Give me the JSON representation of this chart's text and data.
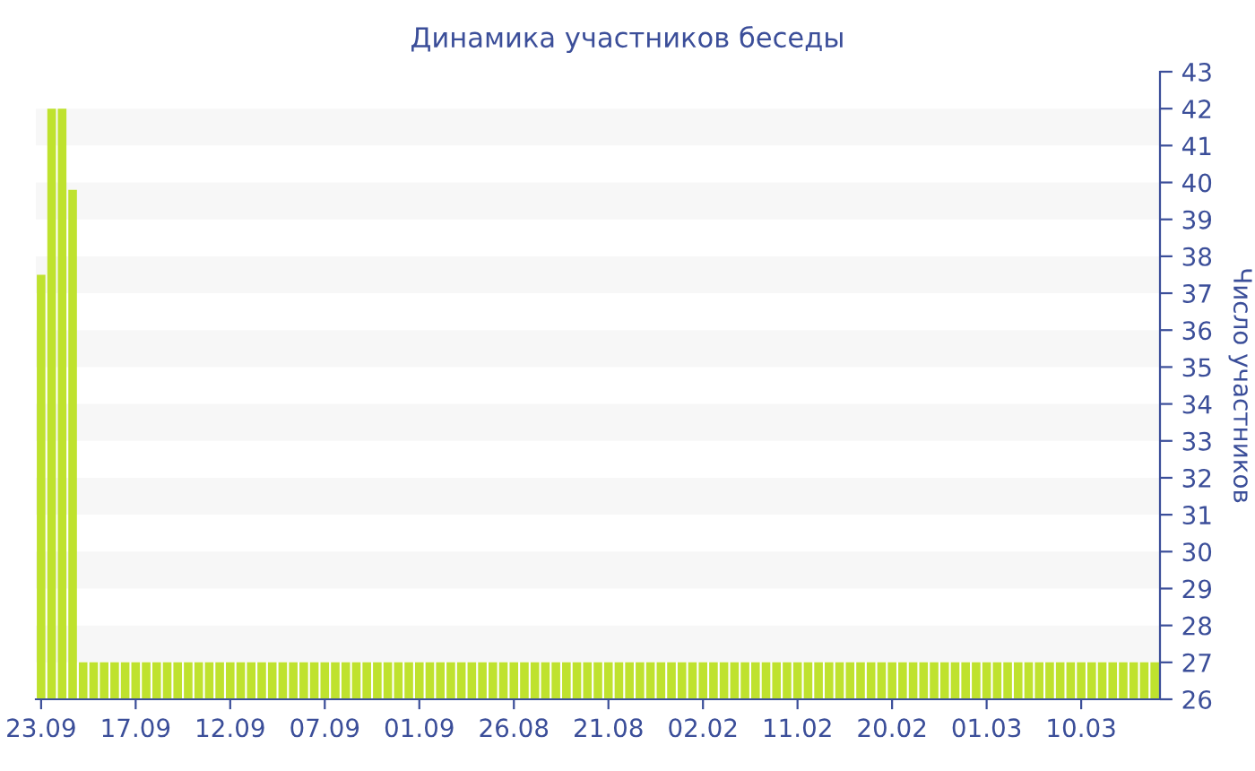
{
  "chart_data": {
    "type": "bar",
    "title": "Динамика участников беседы",
    "ylabel": "Число участников",
    "categories": [
      "23.09",
      null,
      null,
      null,
      null,
      null,
      null,
      null,
      null,
      "17.09",
      null,
      null,
      null,
      null,
      null,
      null,
      null,
      null,
      "12.09",
      null,
      null,
      null,
      null,
      null,
      null,
      null,
      null,
      "07.09",
      null,
      null,
      null,
      null,
      null,
      null,
      null,
      null,
      "01.09",
      null,
      null,
      null,
      null,
      null,
      null,
      null,
      null,
      "26.08",
      null,
      null,
      null,
      null,
      null,
      null,
      null,
      null,
      "21.08",
      null,
      null,
      null,
      null,
      null,
      null,
      null,
      null,
      "02.02",
      null,
      null,
      null,
      null,
      null,
      null,
      null,
      null,
      "11.02",
      null,
      null,
      null,
      null,
      null,
      null,
      null,
      null,
      "20.02",
      null,
      null,
      null,
      null,
      null,
      null,
      null,
      null,
      "01.03",
      null,
      null,
      null,
      null,
      null,
      null,
      null,
      null,
      "10.03",
      null,
      null,
      null,
      null,
      null,
      null,
      null
    ],
    "values": [
      37.5,
      42,
      42,
      39.8,
      27,
      27,
      27,
      27,
      27,
      27,
      27,
      27,
      27,
      27,
      27,
      27,
      27,
      27,
      27,
      27,
      27,
      27,
      27,
      27,
      27,
      27,
      27,
      27,
      27,
      27,
      27,
      27,
      27,
      27,
      27,
      27,
      27,
      27,
      27,
      27,
      27,
      27,
      27,
      27,
      27,
      27,
      27,
      27,
      27,
      27,
      27,
      27,
      27,
      27,
      27,
      27,
      27,
      27,
      27,
      27,
      27,
      27,
      27,
      27,
      27,
      27,
      27,
      27,
      27,
      27,
      27,
      27,
      27,
      27,
      27,
      27,
      27,
      27,
      27,
      27,
      27,
      27,
      27,
      27,
      27,
      27,
      27,
      27,
      27,
      27,
      27,
      27,
      27,
      27,
      27,
      27,
      27,
      27,
      27,
      27,
      27,
      27,
      27,
      27,
      27,
      27,
      27
    ],
    "color": "#bfe22e",
    "ylim": [
      26,
      43
    ],
    "yticks": [
      26,
      27,
      28,
      29,
      30,
      31,
      32,
      33,
      34,
      35,
      36,
      37,
      38,
      39,
      40,
      41,
      42,
      43
    ],
    "grid": false,
    "bands": [
      {
        "axis": "y",
        "from": 27,
        "to": 28,
        "color": "#f7f7f7"
      },
      {
        "axis": "y",
        "from": 29,
        "to": 30,
        "color": "#f7f7f7"
      },
      {
        "axis": "y",
        "from": 31,
        "to": 32,
        "color": "#f7f7f7"
      },
      {
        "axis": "y",
        "from": 33,
        "to": 34,
        "color": "#f7f7f7"
      },
      {
        "axis": "y",
        "from": 35,
        "to": 36,
        "color": "#f7f7f7"
      },
      {
        "axis": "y",
        "from": 37,
        "to": 38,
        "color": "#f7f7f7"
      },
      {
        "axis": "y",
        "from": 39,
        "to": 40,
        "color": "#f7f7f7"
      },
      {
        "axis": "y",
        "from": 41,
        "to": 42,
        "color": "#f7f7f7"
      }
    ]
  }
}
